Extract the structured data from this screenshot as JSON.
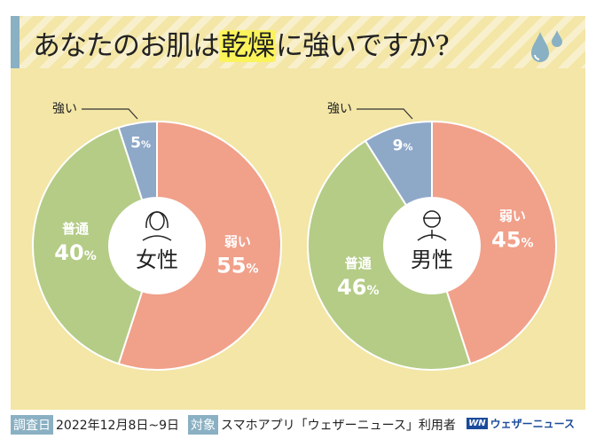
{
  "title": {
    "pre": "あなたのお肌は",
    "highlight": "乾燥",
    "post": "に強いですか?"
  },
  "colors": {
    "weak": "#f1a08a",
    "normal": "#b4cc86",
    "strong": "#8ea8c8"
  },
  "chart_data": [
    {
      "type": "pie",
      "title": "女性",
      "categories": [
        "弱い",
        "普通",
        "強い"
      ],
      "values": [
        55,
        40,
        5
      ],
      "unit": "%"
    },
    {
      "type": "pie",
      "title": "男性",
      "categories": [
        "弱い",
        "普通",
        "強い"
      ],
      "values": [
        45,
        46,
        9
      ],
      "unit": "%"
    }
  ],
  "footer": {
    "date_tag": "調査日",
    "date": "2022年12月8日~9日",
    "target_tag": "対象",
    "target": "スマホアプリ「ウェザーニュース」利用者",
    "brand_logo": "WN",
    "brand": "ウェザーニュース"
  }
}
